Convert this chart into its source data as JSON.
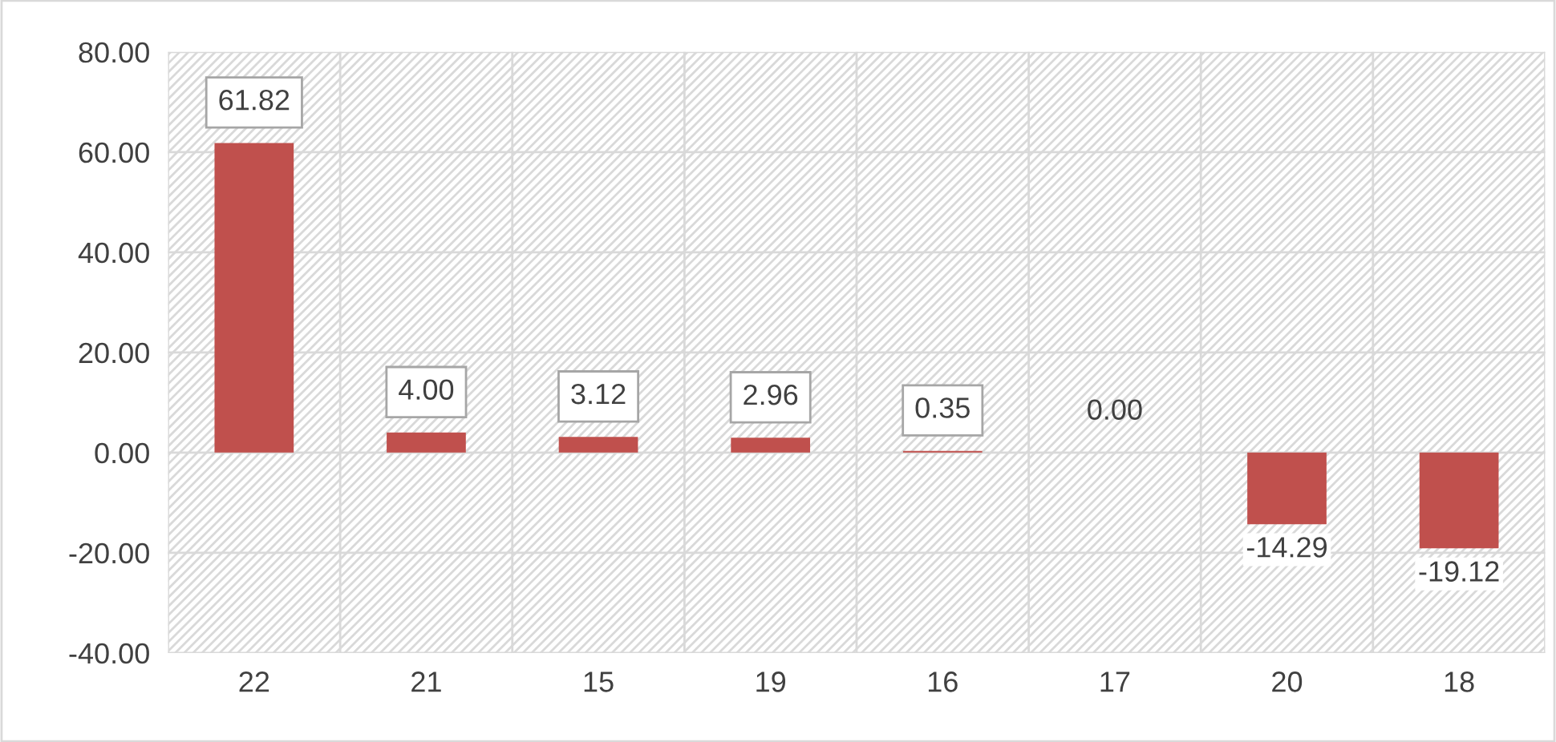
{
  "chart_data": {
    "type": "bar",
    "categories": [
      "22",
      "21",
      "15",
      "19",
      "16",
      "17",
      "20",
      "18"
    ],
    "values": [
      61.82,
      4.0,
      3.12,
      2.96,
      0.35,
      0.0,
      -14.29,
      -19.12
    ],
    "value_labels": [
      "61.82",
      "4.00",
      "3.12",
      "2.96",
      "0.35",
      "0.00",
      "-14.29",
      "-19.12"
    ],
    "color": "#c0504d",
    "ylim": [
      -40,
      80
    ],
    "yticks": [
      {
        "value": -40,
        "label": "-40.00"
      },
      {
        "value": -20,
        "label": "-20.00"
      },
      {
        "value": 0,
        "label": "0.00"
      },
      {
        "value": 20,
        "label": "20.00"
      },
      {
        "value": 40,
        "label": "40.00"
      },
      {
        "value": 60,
        "label": "60.00"
      },
      {
        "value": 80,
        "label": "80.00"
      }
    ],
    "grid": true,
    "legend": false
  }
}
